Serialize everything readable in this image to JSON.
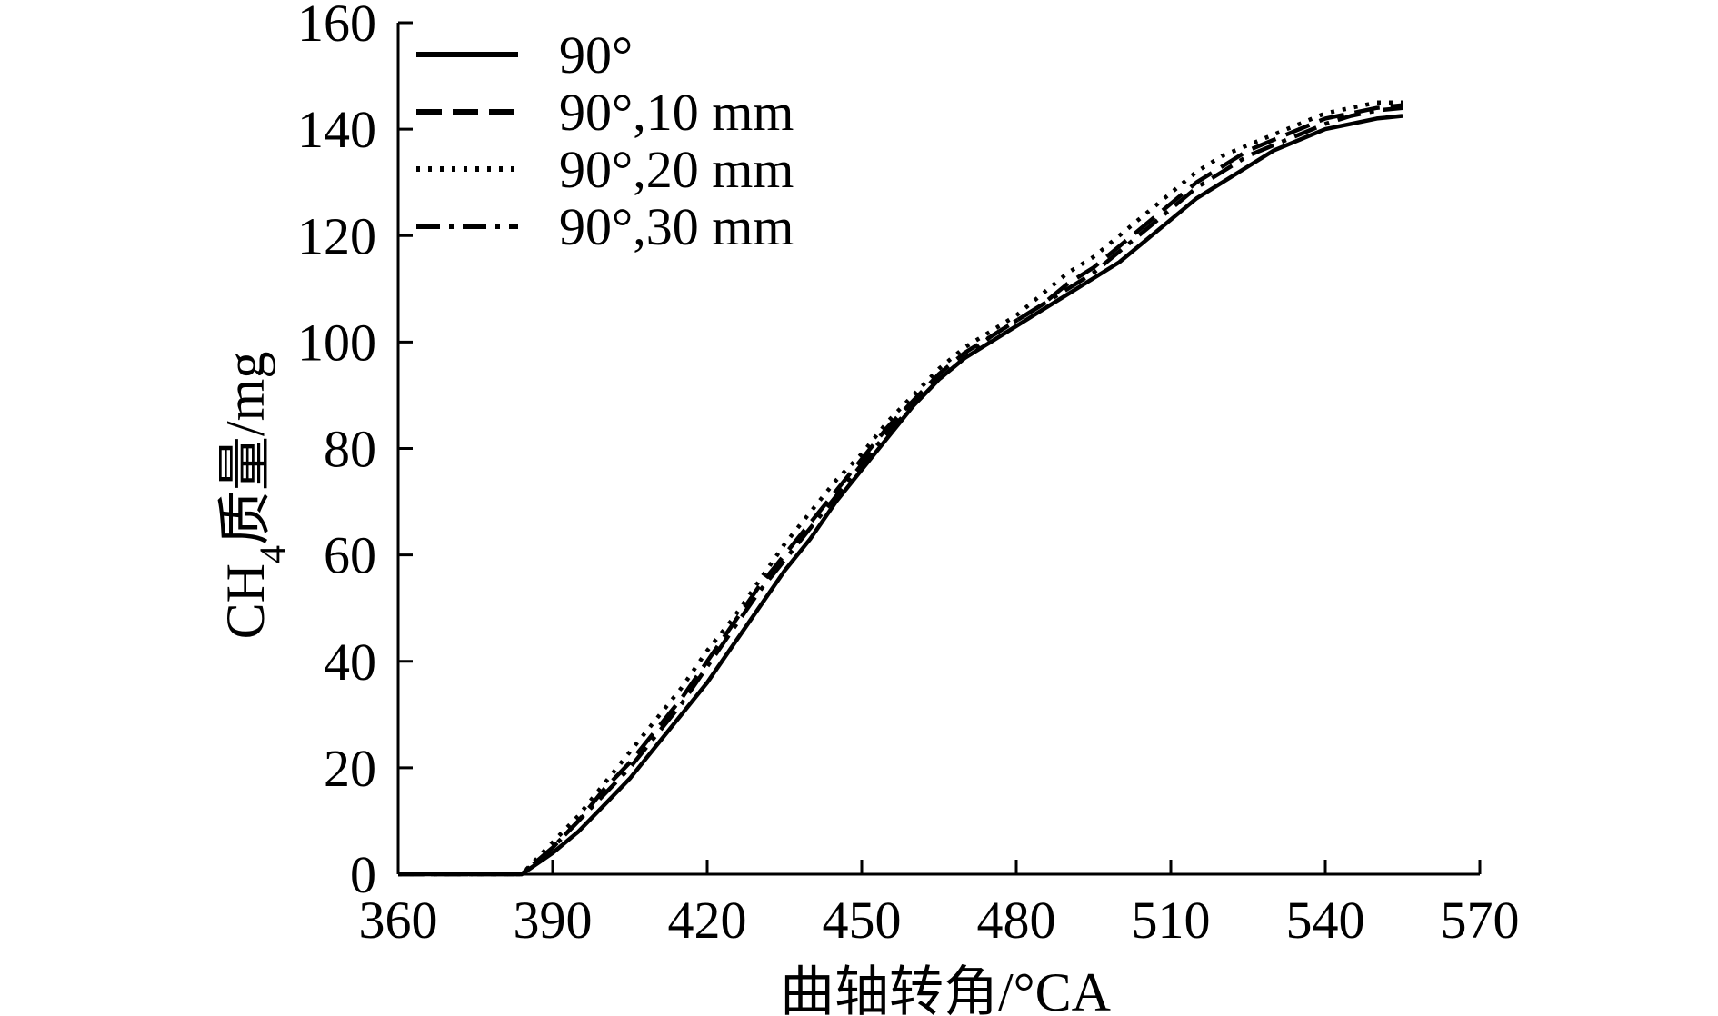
{
  "chart_data": {
    "type": "line",
    "xlabel": "曲轴转角/°CA",
    "ylabel": "CH4质量/mg",
    "xlim": [
      360,
      570
    ],
    "ylim": [
      0,
      160
    ],
    "xticks": [
      360,
      390,
      420,
      450,
      480,
      510,
      540,
      570
    ],
    "yticks": [
      0,
      20,
      40,
      60,
      80,
      100,
      120,
      140,
      160
    ],
    "grid": false,
    "legend_position": "top-left",
    "series": [
      {
        "name": "90°",
        "style": "solid",
        "x": [
          360,
          384,
          390,
          395,
          400,
          405,
          410,
          415,
          420,
          425,
          430,
          435,
          440,
          445,
          450,
          455,
          460,
          465,
          470,
          475,
          480,
          485,
          490,
          495,
          500,
          505,
          510,
          515,
          520,
          525,
          530,
          535,
          540,
          545,
          550,
          555
        ],
        "y": [
          0,
          0,
          4,
          8,
          13,
          18,
          24,
          30,
          36,
          43,
          50,
          57,
          63,
          70,
          76,
          82,
          88,
          93,
          97,
          100,
          103,
          106,
          109,
          112,
          115,
          119,
          123,
          127,
          130,
          133,
          136,
          138,
          140,
          141,
          142,
          142.5
        ]
      },
      {
        "name": "90°,10 mm",
        "style": "dashed",
        "x": [
          360,
          384,
          390,
          395,
          400,
          405,
          410,
          415,
          420,
          425,
          430,
          435,
          440,
          445,
          450,
          455,
          460,
          465,
          470,
          475,
          480,
          485,
          490,
          495,
          500,
          505,
          510,
          515,
          520,
          525,
          530,
          535,
          540,
          545,
          550,
          555
        ],
        "y": [
          0,
          0,
          5,
          10,
          16,
          21,
          27,
          33,
          40,
          47,
          54,
          60,
          66,
          72,
          78,
          84,
          89,
          94,
          98,
          101,
          104,
          107,
          111,
          114,
          118,
          122,
          126,
          130,
          133,
          136,
          138,
          140,
          142,
          143,
          144,
          144.5
        ]
      },
      {
        "name": "90°,20 mm",
        "style": "dotted",
        "x": [
          360,
          384,
          390,
          395,
          400,
          405,
          410,
          415,
          420,
          425,
          430,
          435,
          440,
          445,
          450,
          455,
          460,
          465,
          470,
          475,
          480,
          485,
          490,
          495,
          500,
          505,
          510,
          515,
          520,
          525,
          530,
          535,
          540,
          545,
          550,
          555
        ],
        "y": [
          0,
          0,
          6,
          11,
          17,
          23,
          29,
          35,
          42,
          48,
          55,
          62,
          68,
          74,
          79,
          85,
          90,
          95,
          99,
          102,
          105,
          109,
          113,
          116,
          120,
          124,
          128,
          132,
          135,
          137,
          139,
          141,
          143,
          144,
          145,
          145
        ]
      },
      {
        "name": "90°,30 mm",
        "style": "dashdot",
        "x": [
          360,
          384,
          390,
          395,
          400,
          405,
          410,
          415,
          420,
          425,
          430,
          435,
          440,
          445,
          450,
          455,
          460,
          465,
          470,
          475,
          480,
          485,
          490,
          495,
          500,
          505,
          510,
          515,
          520,
          525,
          530,
          535,
          540,
          545,
          550,
          555
        ],
        "y": [
          0,
          0,
          5,
          10,
          15,
          20,
          26,
          32,
          39,
          46,
          53,
          59,
          65,
          71,
          77,
          83,
          88,
          93,
          97,
          101,
          104,
          107,
          110,
          113,
          117,
          121,
          125,
          129,
          132,
          135,
          137,
          139,
          141,
          142.5,
          143.5,
          144
        ]
      }
    ]
  }
}
